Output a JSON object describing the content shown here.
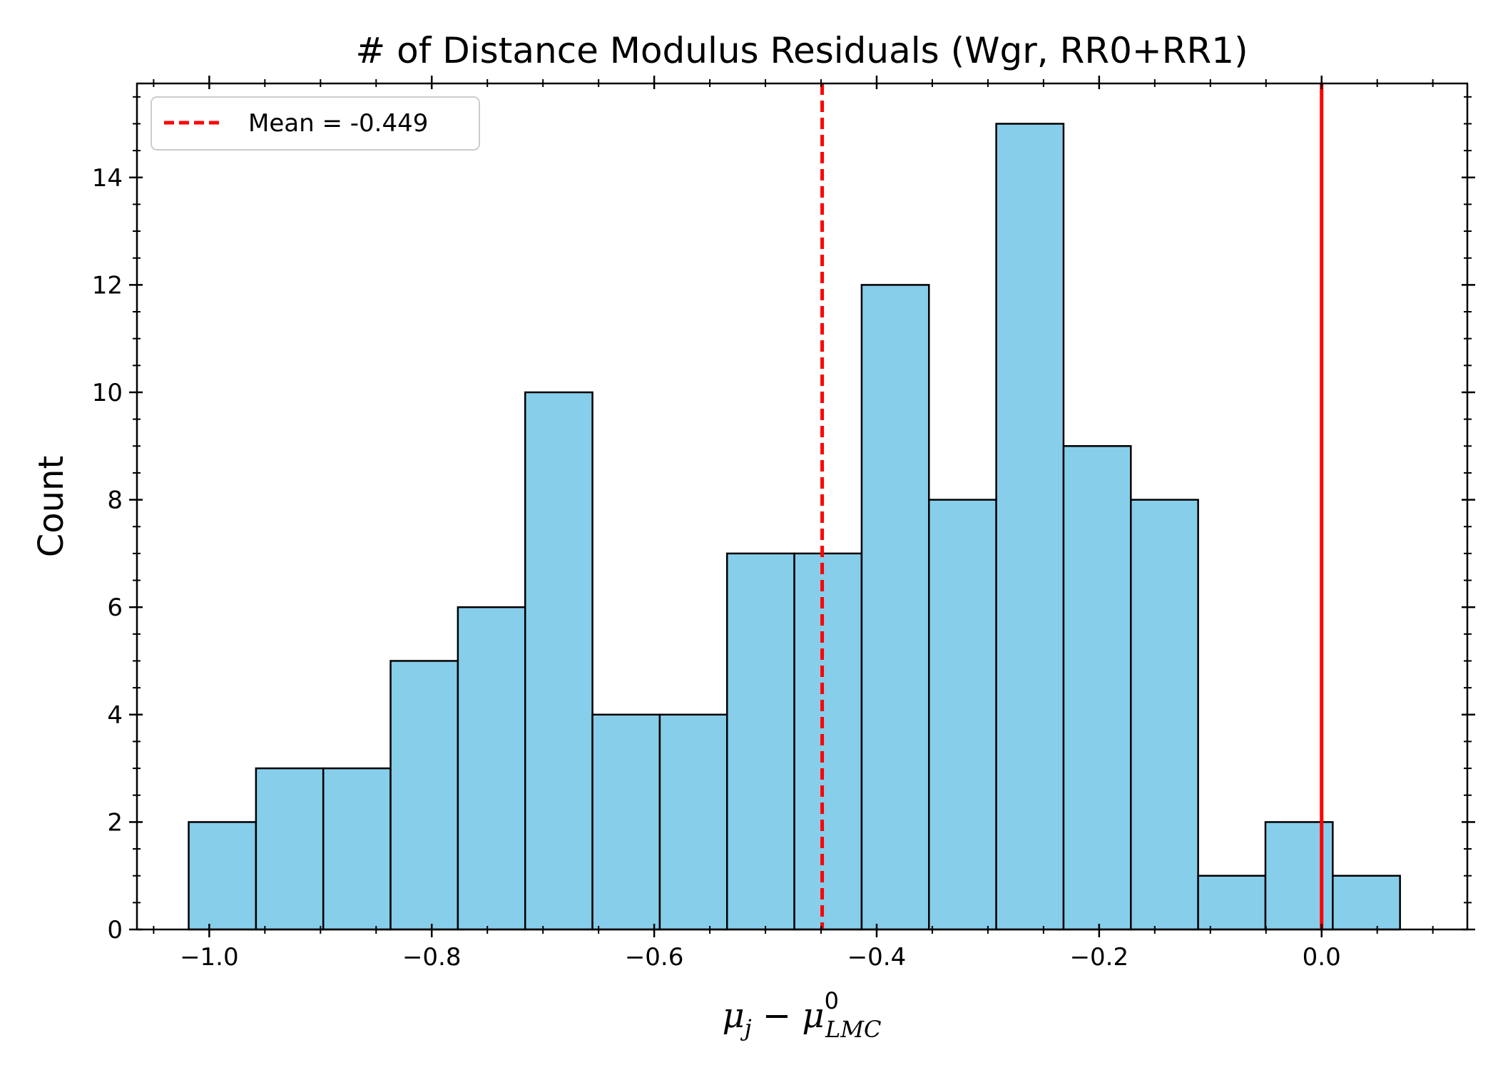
{
  "chart_data": {
    "type": "bar",
    "title": "# of Distance Modulus Residuals (Wgr, RR0+RR1)",
    "xlabel": {
      "mu": "μ",
      "sub_j": "j",
      "minus": " − ",
      "sup_0": "0",
      "sub_lmc": "LMC"
    },
    "ylabel": "Count",
    "xlim": [
      -1.065,
      0.131
    ],
    "ylim": [
      0,
      15.75
    ],
    "x_ticks": [
      "−1.0",
      "−0.8",
      "−0.6",
      "−0.4",
      "−0.2",
      "0.0"
    ],
    "x_tick_values": [
      -1.0,
      -0.8,
      -0.6,
      -0.4,
      -0.2,
      0.0
    ],
    "y_ticks": [
      "0",
      "2",
      "4",
      "6",
      "8",
      "10",
      "12",
      "14"
    ],
    "y_tick_values": [
      0,
      2,
      4,
      6,
      8,
      10,
      12,
      14
    ],
    "bin_edges": [
      -1.0185,
      -0.958,
      -0.8975,
      -0.837,
      -0.7765,
      -0.716,
      -0.6555,
      -0.595,
      -0.5345,
      -0.474,
      -0.4135,
      -0.353,
      -0.2925,
      -0.232,
      -0.1715,
      -0.111,
      -0.0505,
      0.01,
      0.0705
    ],
    "counts": [
      2,
      3,
      3,
      5,
      6,
      10,
      4,
      4,
      7,
      7,
      12,
      8,
      15,
      9,
      8,
      1,
      2,
      1
    ],
    "bar_color": "#87CEEB",
    "edge_color": "#000000",
    "mean_line": {
      "x": -0.449,
      "color": "#ff0000",
      "style": "dashed",
      "label": "Mean = -0.449"
    },
    "zero_line": {
      "x": 0.0,
      "color": "#ff0000",
      "style": "solid"
    },
    "legend_position": "top-left",
    "grid": false
  }
}
